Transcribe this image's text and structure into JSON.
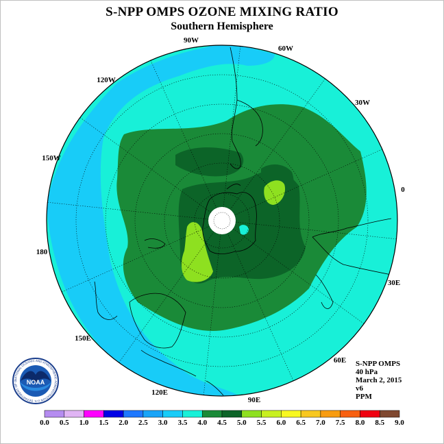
{
  "title": "S-NPP OMPS OZONE MIXING RATIO",
  "subtitle": "Southern Hemisphere",
  "longitude_labels": {
    "lon_90w": "90W",
    "lon_60w": "60W",
    "lon_30w": "30W",
    "lon_0": "0",
    "lon_30e": "30E",
    "lon_60e": "60E",
    "lon_90e": "90E",
    "lon_120e": "120E",
    "lon_150e": "150E",
    "lon_180": "180",
    "lon_150w": "150W",
    "lon_120w": "120W"
  },
  "info": {
    "instrument": "S-NPP OMPS",
    "level": "40 hPa",
    "date": "March 2, 2015",
    "version": "v6",
    "units": "PPM"
  },
  "logo": {
    "text": "NOAA",
    "ring_text": "NATIONAL OCEANIC AND ATMOSPHERIC ADMINISTRATION  U.S. DEPARTMENT OF COMMERCE"
  },
  "colorbar": {
    "colors": [
      "#b58cf0",
      "#e0b4f4",
      "#ff00ff",
      "#0000e6",
      "#1e78ff",
      "#18a4f8",
      "#18ccf8",
      "#18f0d8",
      "#1a8a38",
      "#0c6428",
      "#8ee020",
      "#c8f020",
      "#f8f820",
      "#f8c820",
      "#f89c10",
      "#f86010",
      "#f00010",
      "#804830"
    ],
    "labels": [
      "0.0",
      "0.5",
      "1.0",
      "1.5",
      "2.0",
      "2.5",
      "3.0",
      "3.5",
      "4.0",
      "4.5",
      "5.0",
      "5.5",
      "6.0",
      "6.5",
      "7.0",
      "7.5",
      "8.0",
      "8.5",
      "9.0"
    ]
  }
}
